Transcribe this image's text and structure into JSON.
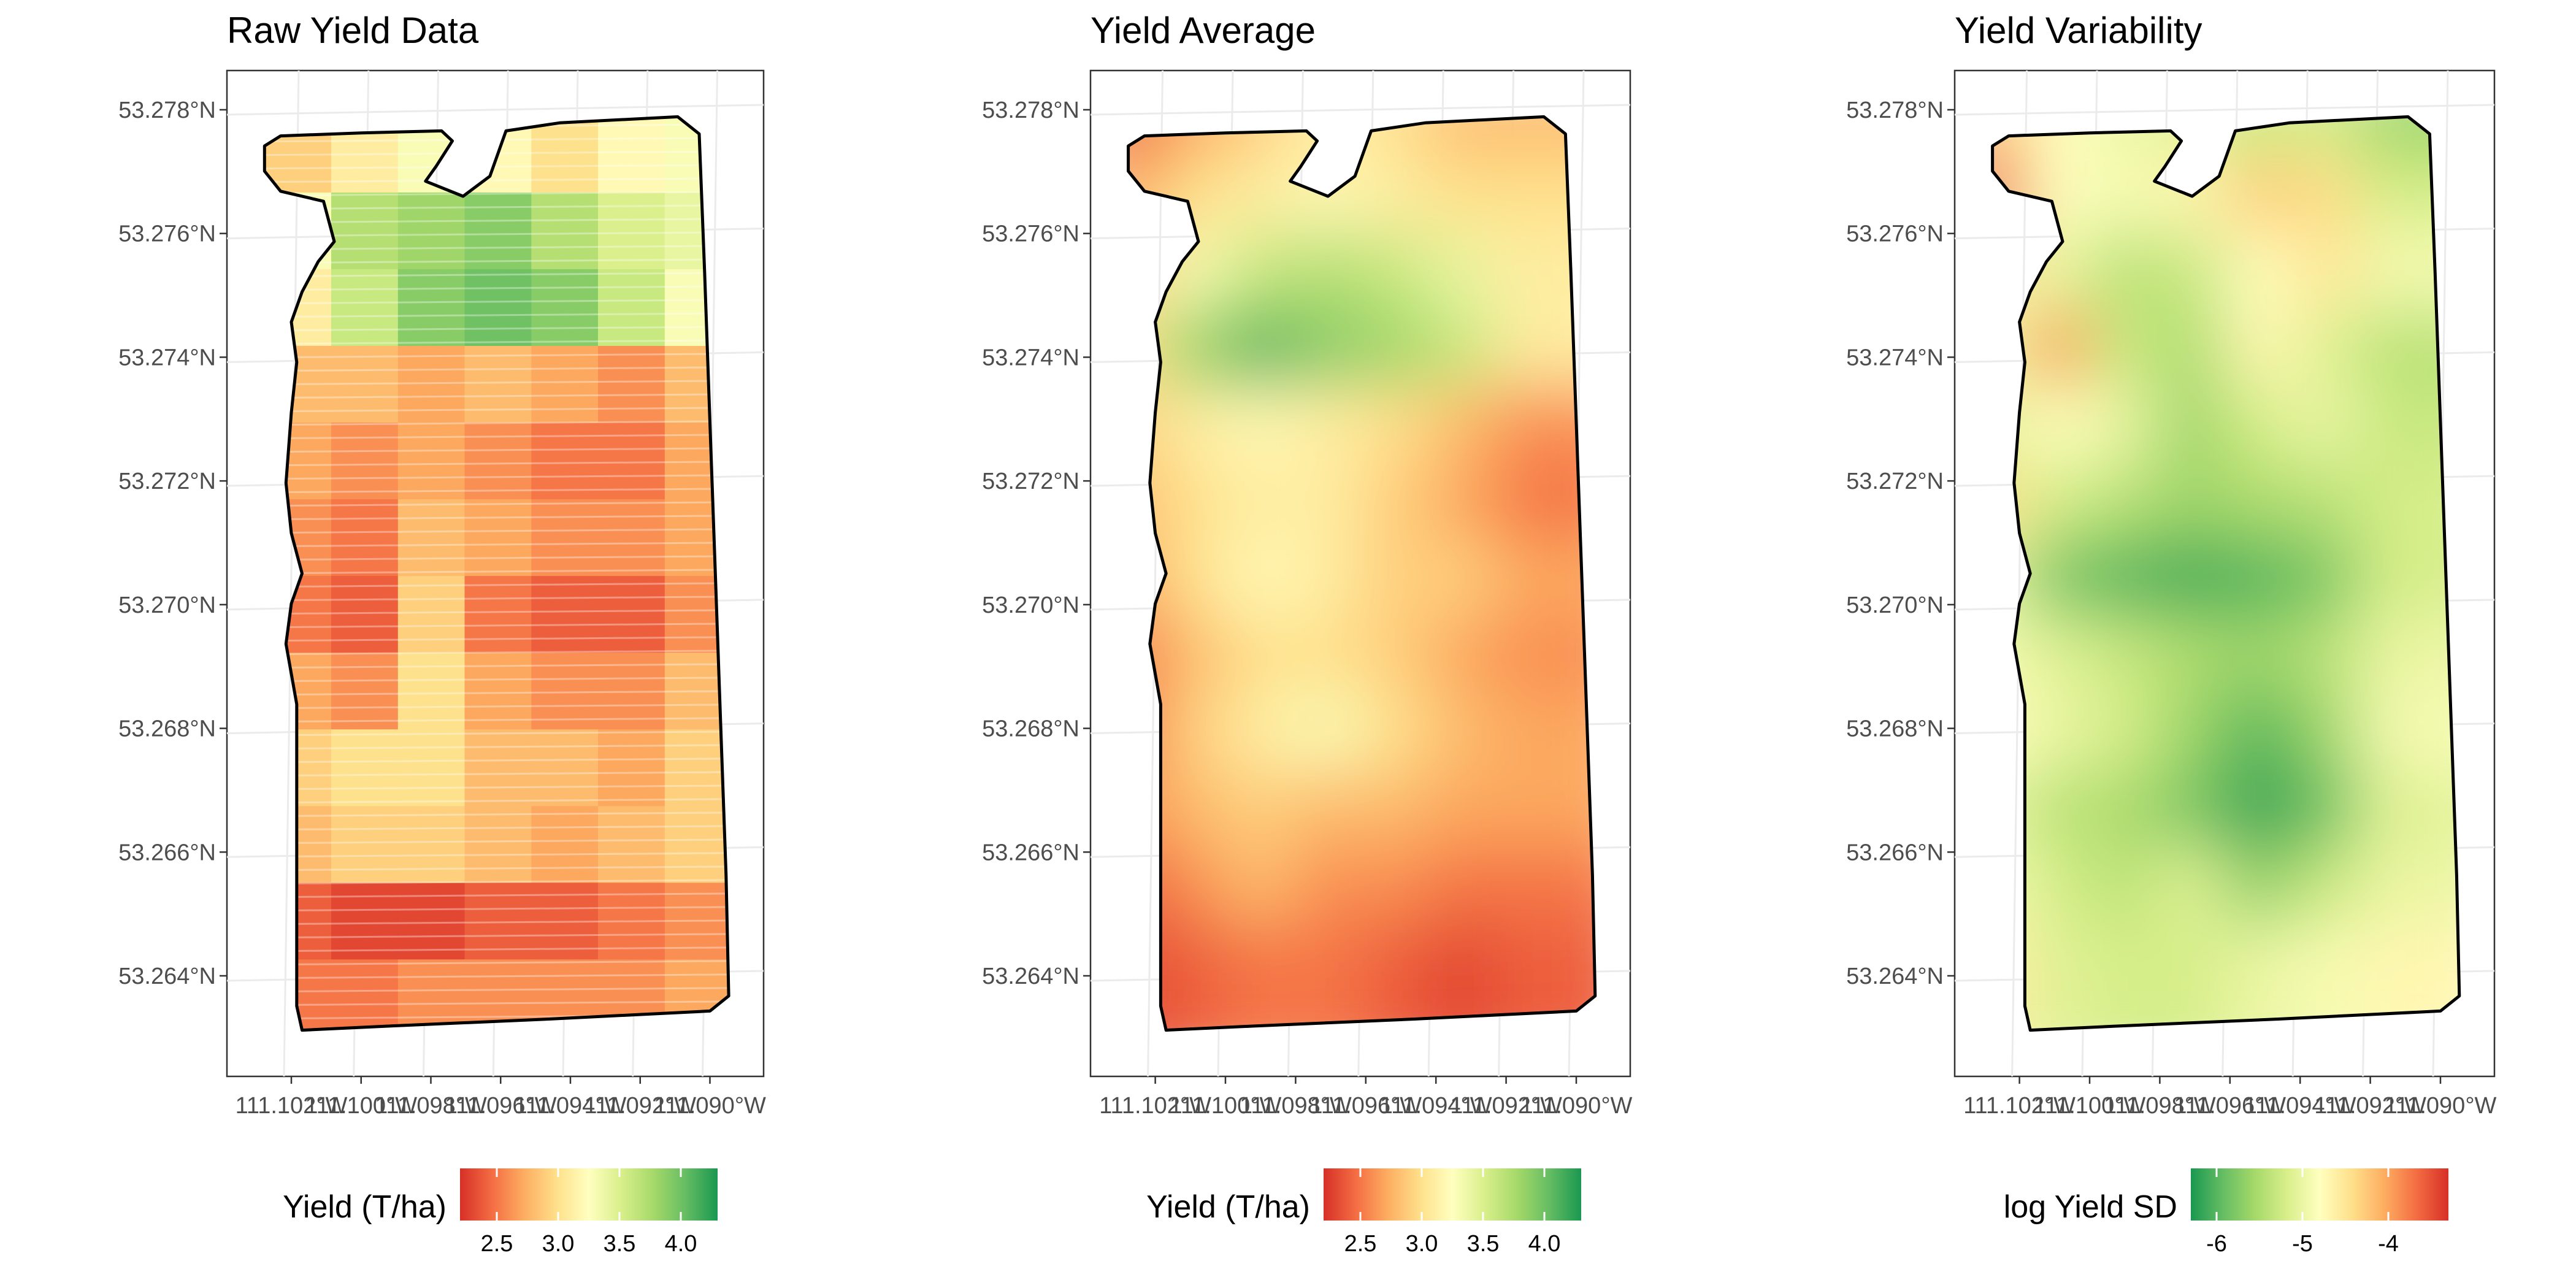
{
  "chart_data": [
    {
      "type": "heatmap",
      "title": "Raw Yield Data",
      "style": "points",
      "xlabel": "",
      "ylabel": "",
      "x_ticks": [
        "111.102°W",
        "111.100°W",
        "111.098°W",
        "111.096°W",
        "111.094°W",
        "111.092°W",
        "111.090°W"
      ],
      "y_ticks": [
        "53.264°N",
        "53.266°N",
        "53.268°N",
        "53.270°N",
        "53.272°N",
        "53.274°N",
        "53.276°N",
        "53.278°N"
      ],
      "legend": {
        "title": "Yield (T/ha)",
        "ticks": [
          "2.5",
          "3.0",
          "3.5",
          "4.0"
        ],
        "tick_values": [
          2.5,
          3.0,
          3.5,
          4.0
        ],
        "range": [
          2.2,
          4.3
        ],
        "colors": [
          "#d73027",
          "#f46d43",
          "#fdae61",
          "#fee08b",
          "#ffffbf",
          "#d9ef8b",
          "#a6d96a",
          "#66bd63",
          "#1a9850"
        ]
      },
      "grid": [
        [
          2.9,
          3.1,
          3.3,
          3.2,
          3.0,
          3.2,
          3.3
        ],
        [
          3.3,
          3.7,
          3.8,
          3.9,
          3.7,
          3.5,
          3.4
        ],
        [
          3.1,
          3.6,
          3.9,
          4.0,
          3.9,
          3.6,
          3.3
        ],
        [
          2.8,
          2.8,
          2.7,
          2.8,
          2.7,
          2.6,
          2.8
        ],
        [
          2.7,
          2.6,
          2.7,
          2.6,
          2.5,
          2.5,
          2.7
        ],
        [
          2.6,
          2.5,
          2.8,
          2.7,
          2.6,
          2.6,
          2.7
        ],
        [
          2.5,
          2.4,
          2.9,
          2.5,
          2.4,
          2.4,
          2.6
        ],
        [
          2.7,
          2.6,
          3.0,
          2.7,
          2.6,
          2.6,
          2.8
        ],
        [
          2.9,
          3.0,
          3.0,
          2.8,
          2.8,
          2.7,
          2.9
        ],
        [
          2.8,
          2.9,
          2.9,
          2.8,
          2.7,
          2.8,
          2.9
        ],
        [
          2.4,
          2.3,
          2.3,
          2.4,
          2.4,
          2.5,
          2.6
        ],
        [
          2.5,
          2.5,
          2.6,
          2.6,
          2.6,
          2.6,
          2.7
        ]
      ]
    },
    {
      "type": "heatmap",
      "title": "Yield Average",
      "style": "smooth",
      "xlabel": "",
      "ylabel": "",
      "x_ticks": [
        "111.102°W",
        "111.100°W",
        "111.098°W",
        "111.096°W",
        "111.094°W",
        "111.092°W",
        "111.090°W"
      ],
      "y_ticks": [
        "53.264°N",
        "53.266°N",
        "53.268°N",
        "53.270°N",
        "53.272°N",
        "53.274°N",
        "53.276°N",
        "53.278°N"
      ],
      "legend": {
        "title": "Yield (T/ha)",
        "ticks": [
          "2.5",
          "3.0",
          "3.5",
          "4.0"
        ],
        "tick_values": [
          2.5,
          3.0,
          3.5,
          4.0
        ],
        "range": [
          2.2,
          4.3
        ],
        "colors": [
          "#d73027",
          "#f46d43",
          "#fdae61",
          "#fee08b",
          "#ffffbf",
          "#d9ef8b",
          "#a6d96a",
          "#66bd63",
          "#1a9850"
        ]
      },
      "grid": [
        [
          2.4,
          2.7,
          2.9,
          3.1,
          3.0,
          2.8,
          2.8
        ],
        [
          2.7,
          3.0,
          3.1,
          3.2,
          3.1,
          3.0,
          3.0
        ],
        [
          2.9,
          3.3,
          3.6,
          3.7,
          3.6,
          3.4,
          3.1
        ],
        [
          3.0,
          3.8,
          4.1,
          3.9,
          3.8,
          3.6,
          3.1
        ],
        [
          2.9,
          3.1,
          3.2,
          3.1,
          3.0,
          2.8,
          2.6
        ],
        [
          2.8,
          3.0,
          3.1,
          3.1,
          2.9,
          2.7,
          2.5
        ],
        [
          2.7,
          3.0,
          3.2,
          3.1,
          2.9,
          2.9,
          2.7
        ],
        [
          2.5,
          2.8,
          3.0,
          3.0,
          2.9,
          2.7,
          2.6
        ],
        [
          2.5,
          2.9,
          3.1,
          3.3,
          3.0,
          2.8,
          2.7
        ],
        [
          2.6,
          2.8,
          2.9,
          2.8,
          2.8,
          2.7,
          2.7
        ],
        [
          2.4,
          2.6,
          2.8,
          2.6,
          2.6,
          2.5,
          2.5
        ],
        [
          2.3,
          2.4,
          2.5,
          2.5,
          2.4,
          2.3,
          2.4
        ]
      ]
    },
    {
      "type": "heatmap",
      "title": "Yield Variability",
      "style": "smooth",
      "xlabel": "",
      "ylabel": "",
      "x_ticks": [
        "111.102°W",
        "111.100°W",
        "111.098°W",
        "111.096°W",
        "111.094°W",
        "111.092°W",
        "111.090°W"
      ],
      "y_ticks": [
        "53.264°N",
        "53.266°N",
        "53.268°N",
        "53.270°N",
        "53.272°N",
        "53.274°N",
        "53.276°N",
        "53.278°N"
      ],
      "legend": {
        "title": "log Yield SD",
        "ticks": [
          "-6",
          "-5",
          "-4"
        ],
        "tick_values": [
          -6,
          -5,
          -4
        ],
        "range": [
          -6.3,
          -3.3
        ],
        "colors": [
          "#1a9850",
          "#66bd63",
          "#a6d96a",
          "#d9ef8b",
          "#ffffbf",
          "#fee08b",
          "#fdae61",
          "#f46d43",
          "#d73027"
        ]
      },
      "grid": [
        [
          -4.2,
          -4.8,
          -5.0,
          -5.1,
          -5.3,
          -5.2,
          -5.6
        ],
        [
          -3.6,
          -4.8,
          -4.9,
          -4.7,
          -4.3,
          -4.4,
          -5.2
        ],
        [
          -4.6,
          -5.0,
          -5.4,
          -5.3,
          -4.8,
          -4.5,
          -4.9
        ],
        [
          -5.0,
          -4.0,
          -5.3,
          -5.5,
          -4.7,
          -5.1,
          -5.4
        ],
        [
          -5.1,
          -4.8,
          -5.0,
          -5.6,
          -5.2,
          -5.0,
          -5.3
        ],
        [
          -4.4,
          -5.2,
          -5.4,
          -5.6,
          -5.5,
          -5.4,
          -5.2
        ],
        [
          -5.0,
          -5.8,
          -6.0,
          -6.1,
          -6.0,
          -5.8,
          -5.2
        ],
        [
          -4.9,
          -5.1,
          -5.3,
          -5.5,
          -5.6,
          -5.4,
          -5.0
        ],
        [
          -4.8,
          -5.0,
          -5.2,
          -5.6,
          -6.0,
          -5.6,
          -4.9
        ],
        [
          -5.0,
          -5.4,
          -5.5,
          -5.8,
          -6.2,
          -5.9,
          -5.1
        ],
        [
          -4.9,
          -5.2,
          -5.4,
          -5.1,
          -5.7,
          -5.3,
          -5.0
        ],
        [
          -4.6,
          -5.1,
          -5.2,
          -5.2,
          -5.0,
          -4.9,
          -4.7
        ]
      ]
    }
  ]
}
